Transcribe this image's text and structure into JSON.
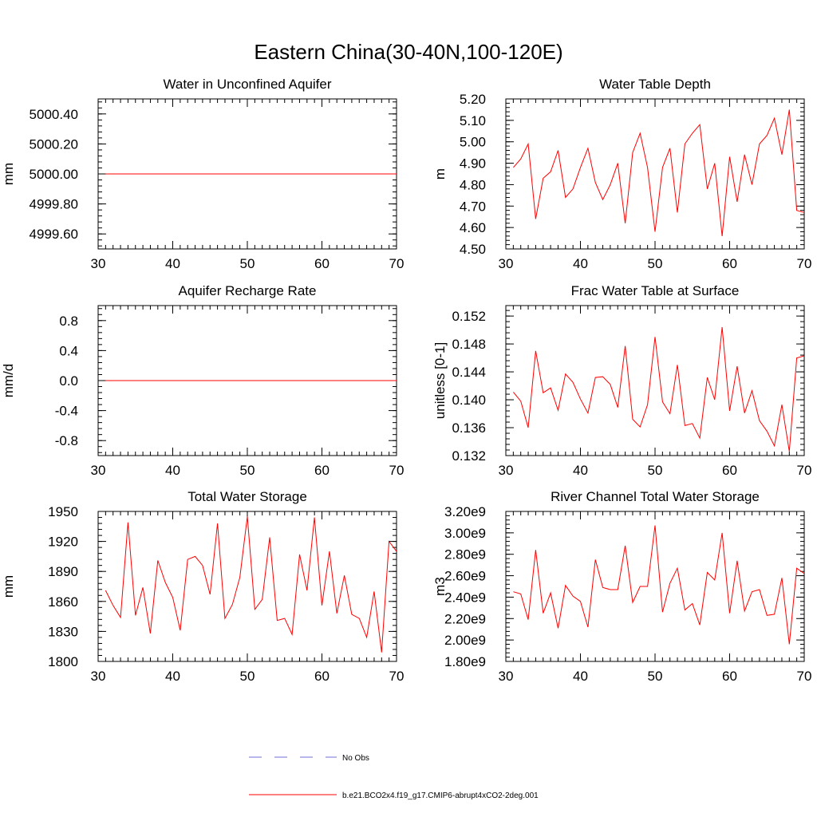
{
  "figure": {
    "title": "Eastern China(30-40N,100-120E)",
    "legend": [
      {
        "label": "No Obs",
        "style": "dashed",
        "color": "#6f6fd8"
      },
      {
        "label": "b.e21.BCO2x4.f19_g17.CMIP6-abrupt4xCO2-2deg.001",
        "style": "solid",
        "color": "#ff0000"
      }
    ]
  },
  "chart_data": [
    {
      "type": "line",
      "title": "Water in Unconfined Aquifer",
      "xlabel": "",
      "ylabel": "mm",
      "xlim": [
        30,
        70
      ],
      "ylim": [
        4999.5,
        5000.5
      ],
      "xticks": [
        30,
        40,
        50,
        60,
        70
      ],
      "yticks": [
        4999.6,
        4999.8,
        5000.0,
        5000.2,
        5000.4
      ],
      "ytick_labels": [
        "4999.60",
        "4999.80",
        "5000.00",
        "5000.20",
        "5000.40"
      ],
      "series": [
        {
          "name": "b.e21.BCO2x4.f19_g17.CMIP6-abrupt4xCO2-2deg.001",
          "color": "#ff0000",
          "x": [
            31,
            32,
            33,
            34,
            35,
            36,
            37,
            38,
            39,
            40,
            41,
            42,
            43,
            44,
            45,
            46,
            47,
            48,
            49,
            50,
            51,
            52,
            53,
            54,
            55,
            56,
            57,
            58,
            59,
            60,
            61,
            62,
            63,
            64,
            65,
            66,
            67,
            68,
            69,
            70
          ],
          "values": [
            5000,
            5000,
            5000,
            5000,
            5000,
            5000,
            5000,
            5000,
            5000,
            5000,
            5000,
            5000,
            5000,
            5000,
            5000,
            5000,
            5000,
            5000,
            5000,
            5000,
            5000,
            5000,
            5000,
            5000,
            5000,
            5000,
            5000,
            5000,
            5000,
            5000,
            5000,
            5000,
            5000,
            5000,
            5000,
            5000,
            5000,
            5000,
            5000,
            5000
          ]
        }
      ]
    },
    {
      "type": "line",
      "title": "Water Table Depth",
      "xlabel": "",
      "ylabel": "m",
      "xlim": [
        30,
        70
      ],
      "ylim": [
        4.5,
        5.2
      ],
      "xticks": [
        30,
        40,
        50,
        60,
        70
      ],
      "yticks": [
        4.5,
        4.6,
        4.7,
        4.8,
        4.9,
        5.0,
        5.1,
        5.2
      ],
      "ytick_labels": [
        "4.50",
        "4.60",
        "4.70",
        "4.80",
        "4.90",
        "5.00",
        "5.10",
        "5.20"
      ],
      "series": [
        {
          "name": "b.e21.BCO2x4.f19_g17.CMIP6-abrupt4xCO2-2deg.001",
          "color": "#ff0000",
          "x": [
            31,
            32,
            33,
            34,
            35,
            36,
            37,
            38,
            39,
            40,
            41,
            42,
            43,
            44,
            45,
            46,
            47,
            48,
            49,
            50,
            51,
            52,
            53,
            54,
            55,
            56,
            57,
            58,
            59,
            60,
            61,
            62,
            63,
            64,
            65,
            66,
            67,
            68,
            69,
            70
          ],
          "values": [
            4.88,
            4.92,
            4.99,
            4.64,
            4.83,
            4.86,
            4.96,
            4.74,
            4.78,
            4.88,
            4.97,
            4.81,
            4.73,
            4.8,
            4.9,
            4.62,
            4.95,
            5.04,
            4.88,
            4.58,
            4.88,
            4.97,
            4.67,
            4.99,
            5.04,
            5.08,
            4.78,
            4.9,
            4.56,
            4.93,
            4.72,
            4.94,
            4.8,
            4.99,
            5.03,
            5.11,
            4.94,
            5.15,
            4.68,
            4.67
          ]
        }
      ]
    },
    {
      "type": "line",
      "title": "Aquifer Recharge Rate",
      "xlabel": "",
      "ylabel": "mm/d",
      "xlim": [
        30,
        70
      ],
      "ylim": [
        -1.0,
        1.0
      ],
      "xticks": [
        30,
        40,
        50,
        60,
        70
      ],
      "yticks": [
        -0.8,
        -0.4,
        0.0,
        0.4,
        0.8
      ],
      "ytick_labels": [
        "-0.8",
        "-0.4",
        "0.0",
        "0.4",
        "0.8"
      ],
      "series": [
        {
          "name": "b.e21.BCO2x4.f19_g17.CMIP6-abrupt4xCO2-2deg.001",
          "color": "#ff0000",
          "x": [
            31,
            32,
            33,
            34,
            35,
            36,
            37,
            38,
            39,
            40,
            41,
            42,
            43,
            44,
            45,
            46,
            47,
            48,
            49,
            50,
            51,
            52,
            53,
            54,
            55,
            56,
            57,
            58,
            59,
            60,
            61,
            62,
            63,
            64,
            65,
            66,
            67,
            68,
            69,
            70
          ],
          "values": [
            0,
            0,
            0,
            0,
            0,
            0,
            0,
            0,
            0,
            0,
            0,
            0,
            0,
            0,
            0,
            0,
            0,
            0,
            0,
            0,
            0,
            0,
            0,
            0,
            0,
            0,
            0,
            0,
            0,
            0,
            0,
            0,
            0,
            0,
            0,
            0,
            0,
            0,
            0,
            0
          ]
        }
      ]
    },
    {
      "type": "line",
      "title": "Frac Water Table at Surface",
      "xlabel": "",
      "ylabel": "unitless [0-1]",
      "xlim": [
        30,
        70
      ],
      "ylim": [
        0.132,
        0.1535
      ],
      "xticks": [
        30,
        40,
        50,
        60,
        70
      ],
      "yticks": [
        0.132,
        0.136,
        0.14,
        0.144,
        0.148,
        0.152
      ],
      "ytick_labels": [
        "0.132",
        "0.136",
        "0.140",
        "0.144",
        "0.148",
        "0.152"
      ],
      "series": [
        {
          "name": "b.e21.BCO2x4.f19_g17.CMIP6-abrupt4xCO2-2deg.001",
          "color": "#ff0000",
          "x": [
            31,
            32,
            33,
            34,
            35,
            36,
            37,
            38,
            39,
            40,
            41,
            42,
            43,
            44,
            45,
            46,
            47,
            48,
            49,
            50,
            51,
            52,
            53,
            54,
            55,
            56,
            57,
            58,
            59,
            60,
            61,
            62,
            63,
            64,
            65,
            66,
            67,
            68,
            69,
            70
          ],
          "values": [
            0.1411,
            0.1398,
            0.136,
            0.147,
            0.141,
            0.1417,
            0.1385,
            0.1437,
            0.1425,
            0.1401,
            0.1381,
            0.1432,
            0.1433,
            0.1422,
            0.1389,
            0.1477,
            0.1372,
            0.1361,
            0.1393,
            0.149,
            0.1397,
            0.138,
            0.145,
            0.1363,
            0.1366,
            0.1345,
            0.1432,
            0.14,
            0.1504,
            0.1384,
            0.1448,
            0.1381,
            0.1413,
            0.137,
            0.1355,
            0.1334,
            0.1393,
            0.1326,
            0.146,
            0.1463
          ]
        }
      ]
    },
    {
      "type": "line",
      "title": "Total Water Storage",
      "xlabel": "",
      "ylabel": "mm",
      "xlim": [
        30,
        70
      ],
      "ylim": [
        1800,
        1950
      ],
      "xticks": [
        30,
        40,
        50,
        60,
        70
      ],
      "yticks": [
        1800,
        1830,
        1860,
        1890,
        1920,
        1950
      ],
      "ytick_labels": [
        "1800",
        "1830",
        "1860",
        "1890",
        "1920",
        "1950"
      ],
      "series": [
        {
          "name": "b.e21.BCO2x4.f19_g17.CMIP6-abrupt4xCO2-2deg.001",
          "color": "#ff0000",
          "x": [
            31,
            32,
            33,
            34,
            35,
            36,
            37,
            38,
            39,
            40,
            41,
            42,
            43,
            44,
            45,
            46,
            47,
            48,
            49,
            50,
            51,
            52,
            53,
            54,
            55,
            56,
            57,
            58,
            59,
            60,
            61,
            62,
            63,
            64,
            65,
            66,
            67,
            68,
            69,
            70
          ],
          "values": [
            1871,
            1856,
            1844,
            1939,
            1846,
            1874,
            1828,
            1901,
            1879,
            1864,
            1831,
            1902,
            1905,
            1896,
            1867,
            1938,
            1843,
            1857,
            1884,
            1945,
            1852,
            1862,
            1924,
            1841,
            1843,
            1827,
            1907,
            1871,
            1944,
            1856,
            1910,
            1848,
            1886,
            1847,
            1843,
            1824,
            1870,
            1809,
            1920,
            1910
          ]
        }
      ]
    },
    {
      "type": "line",
      "title": "River Channel Total Water Storage",
      "xlabel": "",
      "ylabel": "m3",
      "xlim": [
        30,
        70
      ],
      "ylim": [
        1800000000.0,
        3200000000.0
      ],
      "xticks": [
        30,
        40,
        50,
        60,
        70
      ],
      "yticks": [
        1800000000.0,
        2000000000.0,
        2200000000.0,
        2400000000.0,
        2600000000.0,
        2800000000.0,
        3000000000.0,
        3200000000.0
      ],
      "ytick_labels": [
        "1.80e9",
        "2.00e9",
        "2.20e9",
        "2.40e9",
        "2.60e9",
        "2.80e9",
        "3.00e9",
        "3.20e9"
      ],
      "series": [
        {
          "name": "b.e21.BCO2x4.f19_g17.CMIP6-abrupt4xCO2-2deg.001",
          "color": "#ff0000",
          "x": [
            31,
            32,
            33,
            34,
            35,
            36,
            37,
            38,
            39,
            40,
            41,
            42,
            43,
            44,
            45,
            46,
            47,
            48,
            49,
            50,
            51,
            52,
            53,
            54,
            55,
            56,
            57,
            58,
            59,
            60,
            61,
            62,
            63,
            64,
            65,
            66,
            67,
            68,
            69,
            70
          ],
          "values": [
            2450000000.0,
            2430000000.0,
            2190000000.0,
            2840000000.0,
            2250000000.0,
            2440000000.0,
            2110000000.0,
            2510000000.0,
            2410000000.0,
            2360000000.0,
            2120000000.0,
            2750000000.0,
            2490000000.0,
            2470000000.0,
            2470000000.0,
            2880000000.0,
            2350000000.0,
            2500000000.0,
            2500000000.0,
            3070000000.0,
            2260000000.0,
            2530000000.0,
            2670000000.0,
            2280000000.0,
            2340000000.0,
            2140000000.0,
            2630000000.0,
            2560000000.0,
            3000000000.0,
            2250000000.0,
            2740000000.0,
            2270000000.0,
            2450000000.0,
            2470000000.0,
            2230000000.0,
            2240000000.0,
            2580000000.0,
            1960000000.0,
            2670000000.0,
            2620000000.0
          ]
        }
      ]
    }
  ]
}
